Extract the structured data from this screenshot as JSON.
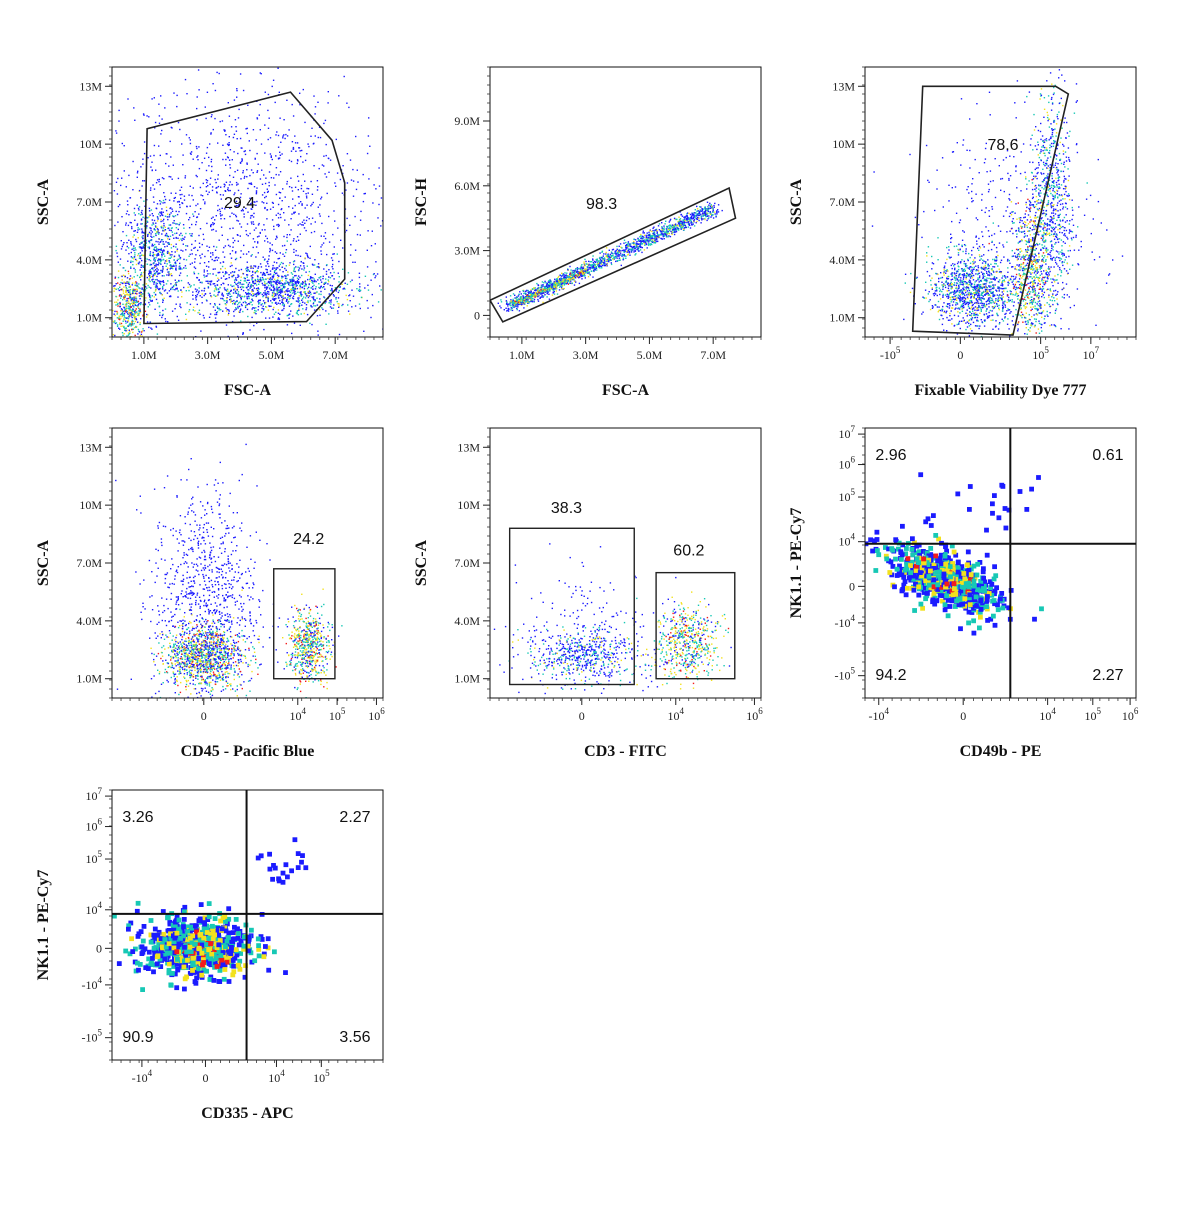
{
  "colors": {
    "low": "#1b1bff",
    "mid": "#17c8b5",
    "high": "#f2e11e",
    "peak": "#f21c1c"
  },
  "chart_data": [
    {
      "id": "p1",
      "type": "scatter",
      "xlabel": "FSC-A",
      "ylabel": "SSC-A",
      "xlim": [
        0,
        8500000
      ],
      "ylim": [
        0,
        14000000
      ],
      "xticks": [
        {
          "v": 1000000,
          "t": "1.0M"
        },
        {
          "v": 3000000,
          "t": "3.0M"
        },
        {
          "v": 5000000,
          "t": "5.0M"
        },
        {
          "v": 7000000,
          "t": "7.0M"
        }
      ],
      "yticks": [
        {
          "v": 1000000,
          "t": "1.0M"
        },
        {
          "v": 4000000,
          "t": "4.0M"
        },
        {
          "v": 7000000,
          "t": "7.0M"
        },
        {
          "v": 10000000,
          "t": "10M"
        },
        {
          "v": 13000000,
          "t": "13M"
        }
      ],
      "gates": [
        {
          "type": "polygon",
          "points": [
            [
              1000000,
              700000
            ],
            [
              1100000,
              10800000
            ],
            [
              5600000,
              12700000
            ],
            [
              6900000,
              10200000
            ],
            [
              7300000,
              8000000
            ],
            [
              7300000,
              3000000
            ],
            [
              6100000,
              800000
            ]
          ],
          "label": "29.4",
          "label_at": [
            4000000,
            7000000
          ]
        }
      ],
      "clusters": [
        {
          "x": 500000,
          "y": 1500000,
          "sx": 250000,
          "sy": 900000,
          "n": 450,
          "d": 2
        },
        {
          "x": 1300000,
          "y": 4200000,
          "sx": 500000,
          "sy": 1500000,
          "n": 700,
          "d": 1
        },
        {
          "x": 5000000,
          "y": 2500000,
          "sx": 1300000,
          "sy": 700000,
          "n": 1100,
          "d": 1
        },
        {
          "x": 4200000,
          "y": 6500000,
          "sx": 2200000,
          "sy": 3200000,
          "n": 1300,
          "d": 0
        }
      ]
    },
    {
      "id": "p2",
      "type": "scatter",
      "xlabel": "FSC-A",
      "ylabel": "FSC-H",
      "xlim": [
        0,
        8500000
      ],
      "ylim": [
        -1000000,
        11500000
      ],
      "xticks": [
        {
          "v": 1000000,
          "t": "1.0M"
        },
        {
          "v": 3000000,
          "t": "3.0M"
        },
        {
          "v": 5000000,
          "t": "5.0M"
        },
        {
          "v": 7000000,
          "t": "7.0M"
        }
      ],
      "yticks": [
        {
          "v": 0,
          "t": "0"
        },
        {
          "v": 3000000,
          "t": "3.0M"
        },
        {
          "v": 6000000,
          "t": "6.0M"
        },
        {
          "v": 9000000,
          "t": "9.0M"
        }
      ],
      "gates": [
        {
          "type": "polygon",
          "points": [
            [
              0,
              700000
            ],
            [
              400000,
              -300000
            ],
            [
              7700000,
              4500000
            ],
            [
              7500000,
              5900000
            ]
          ],
          "label": "98.3",
          "label_at": [
            3500000,
            5200000
          ]
        }
      ],
      "clusters": [
        {
          "line": [
            [
              500000,
              400000
            ],
            [
              7000000,
              5000000
            ]
          ],
          "spread": 150000,
          "n": 1600,
          "d": 1
        },
        {
          "line": [
            [
              700000,
              550000
            ],
            [
              3000000,
              2100000
            ]
          ],
          "spread": 60000,
          "n": 400,
          "d": 2
        }
      ]
    },
    {
      "id": "p3",
      "type": "scatter",
      "xlabel": "Fixable Viability Dye 777",
      "ylabel": "SSC-A",
      "xlim": [
        -3.8,
        7.0
      ],
      "ylim": [
        0,
        14000000
      ],
      "xticks": [
        {
          "v": -2.8,
          "b": "-10",
          "e": "5"
        },
        {
          "v": 0,
          "t": "0"
        },
        {
          "v": 3.2,
          "b": "10",
          "e": "5"
        },
        {
          "v": 5.2,
          "b": "10",
          "e": "7"
        }
      ],
      "yticks": [
        {
          "v": 1000000,
          "t": "1.0M"
        },
        {
          "v": 4000000,
          "t": "4.0M"
        },
        {
          "v": 7000000,
          "t": "7.0M"
        },
        {
          "v": 10000000,
          "t": "10M"
        },
        {
          "v": 13000000,
          "t": "13M"
        }
      ],
      "gates": [
        {
          "type": "polygon",
          "points": [
            [
              -1.5,
              13000000
            ],
            [
              3.8,
              13000000
            ],
            [
              4.3,
              12600000
            ],
            [
              2.1,
              100000
            ],
            [
              -1.9,
              300000
            ]
          ],
          "label": "78.6",
          "label_at": [
            1.7,
            10000000
          ]
        }
      ],
      "clusters": [
        {
          "x": 0.5,
          "y": 2500000,
          "sx": 0.9,
          "sy": 900000,
          "n": 1100,
          "d": 1
        },
        {
          "x": 2.8,
          "y": 3500000,
          "sx": 0.35,
          "sy": 1800000,
          "n": 600,
          "d": 2
        },
        {
          "x": 3.6,
          "y": 7000000,
          "sx": 0.4,
          "sy": 3000000,
          "n": 700,
          "d": 1
        },
        {
          "x": 2.0,
          "y": 5000000,
          "sx": 1.8,
          "sy": 3000000,
          "n": 400,
          "d": 0
        }
      ]
    },
    {
      "id": "p4",
      "type": "scatter",
      "xlabel": "CD45 - Pacific Blue",
      "ylabel": "SSC-A",
      "xlim": [
        -4.2,
        8.2
      ],
      "ylim": [
        0,
        14000000
      ],
      "xticks": [
        {
          "v": 0,
          "t": "0"
        },
        {
          "v": 4.3,
          "b": "10",
          "e": "4"
        },
        {
          "v": 6.1,
          "b": "10",
          "e": "5"
        },
        {
          "v": 7.9,
          "b": "10",
          "e": "6"
        }
      ],
      "yticks": [
        {
          "v": 1000000,
          "t": "1.0M"
        },
        {
          "v": 4000000,
          "t": "4.0M"
        },
        {
          "v": 7000000,
          "t": "7.0M"
        },
        {
          "v": 10000000,
          "t": "10M"
        },
        {
          "v": 13000000,
          "t": "13M"
        }
      ],
      "gates": [
        {
          "type": "rect",
          "x0": 3.2,
          "x1": 6.0,
          "y0": 1000000,
          "y1": 6700000,
          "label": "24.2",
          "label_at": [
            4.8,
            8300000
          ]
        }
      ],
      "clusters": [
        {
          "x": 0,
          "y": 2200000,
          "sx": 0.9,
          "sy": 800000,
          "n": 1100,
          "d": 2
        },
        {
          "x": 0,
          "y": 5000000,
          "sx": 1.2,
          "sy": 3000000,
          "n": 900,
          "d": 0
        },
        {
          "x": 4.8,
          "y": 2700000,
          "sx": 0.45,
          "sy": 900000,
          "n": 600,
          "d": 2
        }
      ]
    },
    {
      "id": "p5",
      "type": "scatter",
      "xlabel": "CD3 - FITC",
      "ylabel": "SSC-A",
      "xlim": [
        -4.2,
        8.2
      ],
      "ylim": [
        0,
        14000000
      ],
      "xticks": [
        {
          "v": 0,
          "t": "0"
        },
        {
          "v": 4.3,
          "b": "10",
          "e": "4"
        },
        {
          "v": 7.9,
          "b": "10",
          "e": "6"
        }
      ],
      "yticks": [
        {
          "v": 1000000,
          "t": "1.0M"
        },
        {
          "v": 4000000,
          "t": "4.0M"
        },
        {
          "v": 7000000,
          "t": "7.0M"
        },
        {
          "v": 10000000,
          "t": "10M"
        },
        {
          "v": 13000000,
          "t": "13M"
        }
      ],
      "gates": [
        {
          "type": "rect",
          "x0": -3.3,
          "x1": 2.4,
          "y0": 700000,
          "y1": 8800000,
          "label": "38.3",
          "label_at": [
            -0.7,
            9900000
          ]
        },
        {
          "type": "rect",
          "x0": 3.4,
          "x1": 7.0,
          "y0": 1000000,
          "y1": 6500000,
          "label": "60.2",
          "label_at": [
            4.9,
            7700000
          ]
        }
      ],
      "clusters": [
        {
          "x": 0,
          "y": 2200000,
          "sx": 1.3,
          "sy": 700000,
          "n": 500,
          "d": 1
        },
        {
          "x": 4.8,
          "y": 2900000,
          "sx": 0.7,
          "sy": 900000,
          "n": 550,
          "d": 2
        },
        {
          "x": 0.3,
          "y": 3500000,
          "sx": 1.6,
          "sy": 1600000,
          "n": 200,
          "d": 0
        }
      ]
    },
    {
      "id": "p6",
      "type": "scatter",
      "marker": "square",
      "xlabel": "CD49b - PE",
      "ylabel": "NK1.1 - PE-Cy7",
      "xlim": [
        -5.0,
        8.8
      ],
      "ylim": [
        -5.5,
        7.8
      ],
      "xticks": [
        {
          "v": -4.3,
          "b": "-10",
          "e": "4"
        },
        {
          "v": 0,
          "t": "0"
        },
        {
          "v": 4.3,
          "b": "10",
          "e": "4"
        },
        {
          "v": 6.6,
          "b": "10",
          "e": "5"
        },
        {
          "v": 8.5,
          "b": "10",
          "e": "6"
        }
      ],
      "yticks": [
        {
          "v": -4.4,
          "b": "-10",
          "e": "5"
        },
        {
          "v": -1.8,
          "b": "-10",
          "e": "4"
        },
        {
          "v": 0,
          "t": "0"
        },
        {
          "v": 2.2,
          "b": "10",
          "e": "4"
        },
        {
          "v": 4.4,
          "b": "10",
          "e": "5"
        },
        {
          "v": 6.0,
          "b": "10",
          "e": "6"
        },
        {
          "v": 7.5,
          "b": "10",
          "e": "7"
        }
      ],
      "gates": [
        {
          "type": "quad",
          "x": 2.4,
          "y": 2.1,
          "labels": {
            "tl": "2.96",
            "tr": "0.61",
            "bl": "94.2",
            "br": "2.27"
          }
        }
      ],
      "clusters": [
        {
          "x": -1.0,
          "y": 0.4,
          "sx": 1.4,
          "sy": 0.7,
          "tilt": -0.35,
          "n": 600,
          "d": 1
        },
        {
          "x": -0.8,
          "y": 0.3,
          "sx": 0.9,
          "sy": 0.4,
          "tilt": -0.35,
          "n": 200,
          "d": 2
        },
        {
          "x": 0.5,
          "y": 4.0,
          "sx": 2.5,
          "sy": 0.7,
          "n": 22,
          "d": 0
        }
      ]
    },
    {
      "id": "p7",
      "type": "scatter",
      "marker": "square",
      "xlabel": "CD335 - APC",
      "ylabel": "NK1.1 - PE-Cy7",
      "xlim": [
        -5.0,
        9.5
      ],
      "ylim": [
        -5.5,
        7.8
      ],
      "xticks": [
        {
          "v": -3.4,
          "b": "-10",
          "e": "4"
        },
        {
          "v": 0,
          "t": "0"
        },
        {
          "v": 3.8,
          "b": "10",
          "e": "4"
        },
        {
          "v": 6.2,
          "b": "10",
          "e": "5"
        }
      ],
      "yticks": [
        {
          "v": -4.4,
          "b": "-10",
          "e": "5"
        },
        {
          "v": -1.8,
          "b": "-10",
          "e": "4"
        },
        {
          "v": 0,
          "t": "0"
        },
        {
          "v": 1.9,
          "b": "10",
          "e": "4"
        },
        {
          "v": 4.4,
          "b": "10",
          "e": "5"
        },
        {
          "v": 6.0,
          "b": "10",
          "e": "6"
        },
        {
          "v": 7.5,
          "b": "10",
          "e": "7"
        }
      ],
      "gates": [
        {
          "type": "quad",
          "x": 2.2,
          "y": 1.7,
          "labels": {
            "tl": "3.26",
            "tr": "2.27",
            "bl": "90.9",
            "br": "3.56"
          }
        }
      ],
      "clusters": [
        {
          "x": -0.5,
          "y": 0.1,
          "sx": 1.5,
          "sy": 0.75,
          "n": 650,
          "d": 1
        },
        {
          "x": -0.4,
          "y": 0.0,
          "sx": 1.0,
          "sy": 0.45,
          "n": 220,
          "d": 2
        },
        {
          "x": 4.3,
          "y": 3.9,
          "sx": 0.8,
          "sy": 0.6,
          "n": 20,
          "d": 0
        }
      ]
    }
  ]
}
